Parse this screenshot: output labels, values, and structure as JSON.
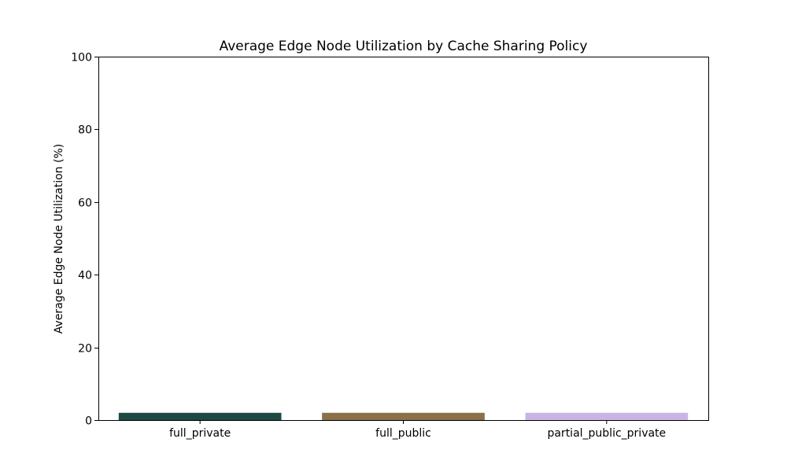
{
  "chart_data": {
    "type": "bar",
    "title": "Average Edge Node Utilization by Cache Sharing Policy",
    "xlabel": "",
    "ylabel": "Average Edge Node Utilization (%)",
    "categories": [
      "full_private",
      "full_public",
      "partial_public_private"
    ],
    "values": [
      2.0,
      2.0,
      2.0
    ],
    "colors": [
      "#1d4a42",
      "#8b7048",
      "#c8b5e6"
    ],
    "ylim": [
      0,
      100
    ],
    "yticks": [
      0,
      20,
      40,
      60,
      80,
      100
    ],
    "grid": false,
    "legend": false
  }
}
